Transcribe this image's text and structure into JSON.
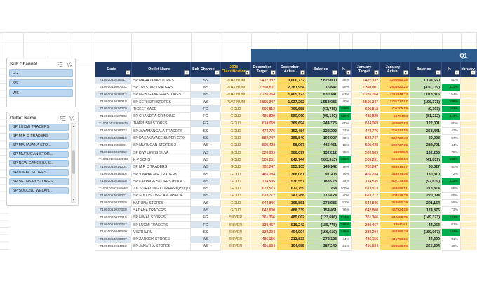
{
  "q1_label": "Q1",
  "slicers": {
    "sub_channel": {
      "title": "Sub Channel",
      "items": [
        "FG",
        "SS",
        "WS"
      ]
    },
    "outlet_name": {
      "title": "Outlet Name",
      "items": [
        "SP LUXMI TRADERS",
        "SP M R C  TRADERS",
        "SP MAHAJANA STO...",
        "SP MURUGAN STOR...",
        "SP NEW GANESHA S...",
        "SP NIMAL STORES",
        "SP SETHSIRI STORES",
        "SP SUDUSU WELAN..."
      ]
    }
  },
  "table": {
    "headers": [
      "Code",
      "Outlet Name",
      "Sub Channel",
      "2020 Classification",
      "December Target",
      "December Actual",
      "Balance",
      "%",
      "January Target",
      "January Actual",
      "Balance",
      "%",
      "February"
    ],
    "rows": [
      {
        "code": "T1001018015017",
        "outlet": "SP MAHAJANA STORES",
        "sub": "SS",
        "cls": "PLATINUM",
        "dec_t": "6,427,332",
        "dec_a": "3,600,732",
        "dec_b": "2,826,600",
        "dec_p": "56%",
        "jan_t": "6,427,332",
        "jan_a": "3232682.16",
        "jan_b": "3,194,650",
        "jan_p": "50%",
        "feb": ""
      },
      {
        "code": "T1001014087002",
        "outlet": "SP TRI STAR TRADERS",
        "sub": "WS",
        "cls": "PLATINUM",
        "dec_t": "2,398,801",
        "dec_a": "2,381,954",
        "dec_b": "16,847",
        "dec_p": "99%",
        "jan_t": "2,398,801",
        "jan_a": "2808920.22",
        "jan_b": "(410,119)",
        "jan_p": "117%",
        "feb": ""
      },
      {
        "code": "T1001018015012",
        "outlet": "SP NEW GANESHA STORES",
        "sub": "WS",
        "cls": "PLATINUM",
        "dec_t": "2,235,264",
        "dec_a": "1,405,123",
        "dec_b": "830,141",
        "dec_p": "63%",
        "jan_t": "2,235,264",
        "jan_a": "1216948.72",
        "jan_b": "1,018,315",
        "jan_p": "54%",
        "feb": ""
      },
      {
        "code": "T1001018015018",
        "outlet": "SP SETHSIRI STORES",
        "sub": "WS",
        "cls": "PLATINUM",
        "dec_t": "2,595,347",
        "dec_a": "1,037,262",
        "dec_b": "1,558,086",
        "dec_p": "40%",
        "jan_t": "2,595,347",
        "jan_a": "2791717.67",
        "jan_b": "(196,371)",
        "jan_p": "108%",
        "feb": ""
      },
      {
        "code": "T1001018014070",
        "outlet": "TICKET KADE",
        "sub": "FG",
        "cls": "GOLD",
        "dec_t": "696,813",
        "dec_a": "760,558",
        "dec_b": "(63,745)",
        "dec_p": "109%",
        "jan_t": "696,813",
        "jan_a": "706205.89",
        "jan_b": "(9,393)",
        "jan_p": "101%",
        "feb": ""
      },
      {
        "code": "T1001015027002",
        "outlet": "SP CHANDRA GRINDING",
        "sub": "FG",
        "cls": "GOLD",
        "dec_t": "485,829",
        "dec_a": "580,969",
        "dec_b": "(95,140)",
        "dec_p": "120%",
        "jan_t": "485,829",
        "jan_a": "567040.8",
        "jan_b": "(81,212)",
        "jan_p": "117%",
        "feb": ""
      },
      {
        "code": "T10010130830075",
        "outlet": "THARUSHI STORES",
        "sub": "FG",
        "cls": "GOLD",
        "dec_t": "614,069",
        "dec_a": "369,694",
        "dec_b": "244,375",
        "dec_p": "60%",
        "jan_t": "614,069",
        "jan_a": "492067.83",
        "jan_b": "122,001",
        "jan_p": "80%",
        "feb": ""
      },
      {
        "code": "T1001014039003",
        "outlet": "SP JAYAMANGALA TRADERS",
        "sub": "SS",
        "cls": "GOLD",
        "dec_t": "474,776",
        "dec_a": "152,484",
        "dec_b": "322,292",
        "dec_p": "32%",
        "jan_t": "474,776",
        "jan_a": "206334.55",
        "jan_b": "268,441",
        "jan_p": "43%",
        "feb": ""
      },
      {
        "code": "T1001014039016",
        "outlet": "SP DASANAYAKE SUPER GRO",
        "sub": "SS",
        "cls": "GOLD",
        "dec_t": "582,747",
        "dec_a": "385,840",
        "dec_b": "196,907",
        "dec_p": "66%",
        "jan_t": "582,747",
        "jan_a": "562739.48",
        "jan_b": "20,008",
        "jan_p": "97%",
        "feb": ""
      },
      {
        "code": "T1001013083001",
        "outlet": "SP MURUGAN STORES  2",
        "sub": "WS",
        "cls": "GOLD",
        "dec_t": "505,428",
        "dec_a": "58,967",
        "dec_b": "446,461",
        "dec_p": "12%",
        "jan_t": "505,428",
        "jan_a": "222727.15",
        "jan_b": "282,701",
        "jan_p": "44%",
        "feb": ""
      },
      {
        "code": "T1001020017002",
        "outlet": "SP D W LEWIS SILVA",
        "sub": "WS",
        "cls": "GOLD",
        "dec_t": "520,909",
        "dec_a": "388,097",
        "dec_b": "132,812",
        "dec_p": "75%",
        "jan_t": "520,909",
        "jan_a": "388705.6",
        "jan_b": "132,203",
        "jan_p": "75%",
        "feb": ""
      },
      {
        "code": "T10010180140009",
        "outlet": "K P  SONS",
        "sub": "WS",
        "cls": "GOLD",
        "dec_t": "509,231",
        "dec_a": "842,744",
        "dec_b": "(333,513)",
        "dec_p": "165%",
        "jan_t": "509,231",
        "jan_a": "551069.54",
        "jan_b": "(41,839)",
        "jan_p": "108%",
        "feb": ""
      },
      {
        "code": "T1001018014004",
        "outlet": "SP M R C  TRADERS",
        "sub": "WS",
        "cls": "GOLD",
        "dec_t": "702,247",
        "dec_a": "553,105",
        "dec_b": "149,142",
        "dec_p": "79%",
        "jan_t": "702,247",
        "jan_a": "633919.67",
        "jan_b": "68,327",
        "jan_p": "90%",
        "feb": ""
      },
      {
        "code": "T1001018015016",
        "outlet": "SP VINAYAGAR TRADERS",
        "sub": "WS",
        "cls": "GOLD",
        "dec_t": "465,284",
        "dec_a": "368,081",
        "dec_b": "97,203",
        "dec_p": "79%",
        "jan_t": "465,284",
        "jan_a": "334974.06",
        "jan_b": "130,310",
        "jan_p": "72%",
        "feb": ""
      },
      {
        "code": "T1001018015020",
        "outlet": "SP KALPAGE STORES (BULA",
        "sub": "WS",
        "cls": "GOLD",
        "dec_t": "714,535",
        "dec_a": "530,557",
        "dec_b": "183,978",
        "dec_p": "74%",
        "jan_t": "714,535",
        "jan_a": "807173.66",
        "jan_b": "(92,639)",
        "jan_p": "113%",
        "feb": ""
      },
      {
        "code": "T10010180150052",
        "outlet": "J K S TRADING COMPANY(PVT)LTD",
        "sub": "WS",
        "cls": "GOLD",
        "dec_t": "673,513",
        "dec_a": "672,759",
        "dec_b": "754",
        "dec_p": "100%",
        "jan_t": "673,513",
        "jan_a": "459698.51",
        "jan_b": "213,814",
        "jan_p": "68%",
        "feb": ""
      },
      {
        "code": "T1001014039001",
        "outlet": "SP SUDUSU WELANDASELA",
        "sub": "WS",
        "cls": "GOLD",
        "dec_t": "623,712",
        "dec_a": "247,288",
        "dec_b": "376,424",
        "dec_p": "40%",
        "jan_t": "623,712",
        "jan_a": "403618.19",
        "jan_b": "220,094",
        "jan_p": "65%",
        "feb": ""
      },
      {
        "code": "T1001020017020",
        "outlet": "KARUNA STORES",
        "sub": "WS",
        "cls": "GOLD",
        "dec_t": "644,846",
        "dec_a": "365,861",
        "dec_b": "278,985",
        "dec_p": "57%",
        "jan_t": "644,846",
        "jan_a": "353682.39",
        "jan_b": "291,164",
        "jan_p": "55%",
        "feb": ""
      },
      {
        "code": "T1001018037050",
        "outlet": "SADANA TRADERS",
        "sub": "WS",
        "cls": "GOLD",
        "dec_t": "642,800",
        "dec_a": "488,339",
        "dec_b": "154,461",
        "dec_p": "76%",
        "jan_t": "642,800",
        "jan_a": "467924.05",
        "jan_b": "174,876",
        "jan_p": "73%",
        "feb": ""
      },
      {
        "code": "T1001020017019",
        "outlet": "SP NIMAL STORES",
        "sub": "FG",
        "cls": "SILVER",
        "dec_t": "361,366",
        "dec_a": "485,062",
        "dec_b": "(123,696)",
        "dec_p": "134%",
        "jan_t": "361,366",
        "jan_a": "510689.05",
        "jan_b": "(149,323)",
        "jan_p": "141%",
        "feb": ""
      },
      {
        "code": "T1001013000057",
        "outlet": "SP LUXMI TRADERS",
        "sub": "FG",
        "cls": "SILVER",
        "dec_t": "330,467",
        "dec_a": "516,242",
        "dec_b": "(185,775)",
        "dec_p": "156%",
        "jan_t": "330,467",
        "jan_a": "286414.1",
        "jan_b": "44,053",
        "jan_p": "87%",
        "feb": ""
      },
      {
        "code": "T1016002049080",
        "outlet": "VISITHURU",
        "sub": "SS",
        "cls": "SILVER",
        "dec_t": "338,294",
        "dec_a": "494,904",
        "dec_b": "(156,610)",
        "dec_p": "146%",
        "jan_t": "338,294",
        "jan_a": "488360.78",
        "jan_b": "(150,067)",
        "jan_p": "144%",
        "feb": ""
      },
      {
        "code": "T1001014039007",
        "outlet": "SP ZAROOK STORES",
        "sub": "WS",
        "cls": "SILVER",
        "dec_t": "486,156",
        "dec_a": "213,833",
        "dec_b": "272,323",
        "dec_p": "44%",
        "jan_t": "486,156",
        "jan_a": "441756.92",
        "jan_b": "44,399",
        "jan_p": "91%",
        "feb": ""
      },
      {
        "code": "T1001018014018",
        "outlet": "SP JANATHA STORES",
        "sub": "WS",
        "cls": "SILVER",
        "dec_t": "491,934",
        "dec_a": "104,685",
        "dec_b": "387,249",
        "dec_p": "21%",
        "jan_t": "491,934",
        "jan_a": "226539.89",
        "jan_b": "265,394",
        "jan_p": "46%",
        "feb": ""
      }
    ]
  },
  "colors": {
    "header_navy": "#1f3864",
    "q1_band_blue": "#2e5c8e",
    "header_accent_yellow": "#ffc000",
    "banded_row_blue": "#dce6f1",
    "classification_bg": "#fff2cc",
    "actual_bg_gold": "#ffd966",
    "balance_bg_green": "#c6e0b4",
    "over_100_green": "#00b050",
    "target_text_red": "#c00000",
    "classification_text": "#7f6000",
    "slicer_button_blue": "#bdd7ee",
    "slicer_button_border": "#9dc3e6"
  }
}
